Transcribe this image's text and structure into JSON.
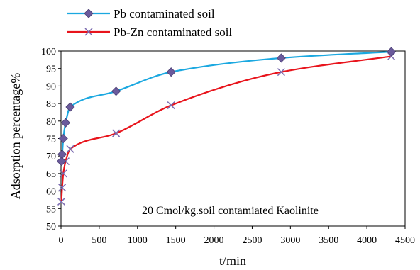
{
  "chart_data": {
    "type": "line",
    "xlabel": "t/min",
    "ylabel": "Adsorption percentage%",
    "xlim": [
      0,
      4500
    ],
    "ylim": [
      50,
      100
    ],
    "xticks": [
      0,
      500,
      1000,
      1500,
      2000,
      2500,
      3000,
      3500,
      4000,
      4500
    ],
    "yticks": [
      50,
      55,
      60,
      65,
      70,
      75,
      80,
      85,
      90,
      95,
      100
    ],
    "grid": false,
    "legend_position": "top-left",
    "annotation": "20 Cmol/kg.soil  contamiated Kaolinite",
    "series": [
      {
        "name": "Pb contaminated soil",
        "color": "#1BA8E0",
        "marker_color": "#6A5A9C",
        "marker": "diamond",
        "x": [
          5,
          15,
          30,
          60,
          120,
          720,
          1440,
          2880,
          4320
        ],
        "y": [
          68.5,
          70.5,
          75,
          79.5,
          84,
          88.5,
          94,
          98,
          99.8
        ]
      },
      {
        "name": "Pb-Zn contaminated soil",
        "color": "#E8141C",
        "marker_color": "#7B6BB0",
        "marker": "x",
        "x": [
          5,
          15,
          30,
          60,
          120,
          720,
          1440,
          2880,
          4320
        ],
        "y": [
          57,
          61,
          65,
          68.5,
          72,
          76.5,
          84.5,
          94,
          98.5
        ]
      }
    ]
  }
}
